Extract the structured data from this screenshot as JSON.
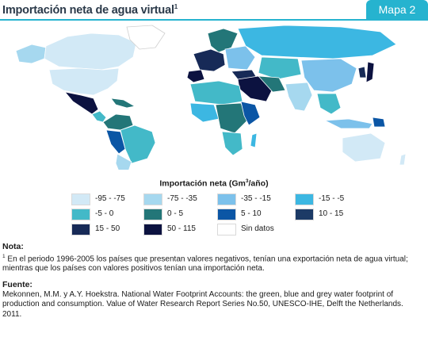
{
  "header": {
    "title": "Importación neta de agua virtual",
    "title_sup": "1",
    "badge": "Mapa 2"
  },
  "legend": {
    "title": "Importación neta (Gm",
    "title_sup": "3",
    "title_end": "/año)",
    "items": [
      {
        "label": "-95 - -75",
        "color": "#d2e9f6"
      },
      {
        "label": "-75 - -35",
        "color": "#a6d8ef"
      },
      {
        "label": "-35 - -15",
        "color": "#7cc1eb"
      },
      {
        "label": "-15 - -5",
        "color": "#3cb7e2"
      },
      {
        "label": "-5 - 0",
        "color": "#43b9c8"
      },
      {
        "label": "0 - 5",
        "color": "#237678"
      },
      {
        "label": "5 - 10",
        "color": "#0b56a5"
      },
      {
        "label": "10 - 15",
        "color": "#1c3a66"
      },
      {
        "label": "15 - 50",
        "color": "#172a57"
      },
      {
        "label": "50 - 115",
        "color": "#0c1240"
      },
      {
        "label": "Sin datos",
        "color": "#ffffff"
      }
    ]
  },
  "note": {
    "heading": "Nota:",
    "marker": "1",
    "text": " En el periodo 1996-2005 los países que presentan valores negativos, tenían una exportación neta de agua virtual; mientras que los países con valores positivos tenían una importación neta."
  },
  "source": {
    "heading": "Fuente:",
    "text": "Mekonnen, M.M. y A.Y. Hoekstra. National Water Footprint Accounts: the green, blue and grey water footprint of production and consumption. Value of Water Research Report Series No.50, UNESCO-IHE, Delft the Netherlands. 2011."
  },
  "map_colors": {
    "ocean": "#ffffff",
    "border": "#ffffff"
  }
}
